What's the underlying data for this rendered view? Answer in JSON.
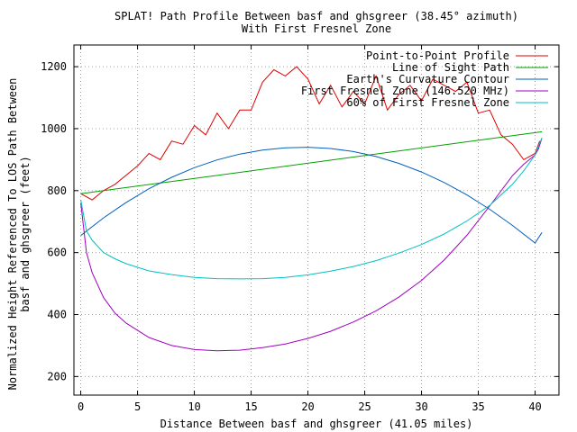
{
  "chart_data": {
    "type": "line",
    "title": "SPLAT! Path Profile Between basf and ghsgreer (38.45° azimuth)",
    "subtitle": "With First Fresnel Zone",
    "xlabel": "Distance Between basf and ghsgreer (41.05 miles)",
    "ylabel_lines": [
      "Normalized Height Referenced To LOS Path Between",
      "basf and ghsgreer (feet)"
    ],
    "xlim": [
      -0.6,
      42.1
    ],
    "ylim": [
      140,
      1270
    ],
    "x_ticks": [
      0,
      5,
      10,
      15,
      20,
      25,
      30,
      35,
      40
    ],
    "y_ticks": [
      200,
      400,
      600,
      800,
      1000,
      1200
    ],
    "grid": true,
    "legend_position": "top-right",
    "series": [
      {
        "name": "Point-to-Point Profile",
        "color": "#e00000",
        "x": [
          0,
          1,
          2,
          3,
          4,
          5,
          6,
          7,
          8,
          9,
          10,
          11,
          12,
          13,
          14,
          15,
          16,
          17,
          18,
          19,
          20,
          21,
          22,
          23,
          24,
          25,
          26,
          27,
          28,
          29,
          30,
          31,
          32,
          33,
          34,
          35,
          36,
          37,
          38,
          39,
          40,
          40.4
        ],
        "y": [
          790,
          770,
          800,
          820,
          850,
          880,
          920,
          900,
          960,
          950,
          1010,
          980,
          1050,
          1000,
          1060,
          1060,
          1150,
          1190,
          1170,
          1200,
          1160,
          1080,
          1140,
          1070,
          1120,
          1080,
          1170,
          1060,
          1110,
          1140,
          1090,
          1160,
          1140,
          1120,
          1150,
          1050,
          1060,
          980,
          950,
          900,
          920,
          960
        ]
      },
      {
        "name": "Line of Sight Path",
        "color": "#00a000",
        "x": [
          0,
          40.6
        ],
        "y": [
          790,
          990
        ]
      },
      {
        "name": "Earth's Curvature Contour",
        "color": "#0060c0",
        "x": [
          0,
          2,
          4,
          6,
          8,
          10,
          12,
          14,
          16,
          18,
          20,
          22,
          24,
          26,
          28,
          30,
          32,
          34,
          36,
          38,
          40,
          40.6
        ],
        "y": [
          655,
          712,
          762,
          806,
          843,
          874,
          899,
          918,
          931,
          938,
          940,
          936,
          926,
          910,
          888,
          860,
          826,
          786,
          740,
          688,
          631,
          665
        ]
      },
      {
        "name": "First Fresnel Zone (146.520 MHz)",
        "color": "#a000c0",
        "x": [
          0,
          0.5,
          1,
          2,
          3,
          4,
          6,
          8,
          10,
          12,
          14,
          16,
          18,
          20,
          22,
          24,
          26,
          28,
          30,
          32,
          34,
          36,
          38,
          39,
          40,
          40.3,
          40.6
        ],
        "y": [
          760,
          600,
          535,
          455,
          405,
          372,
          326,
          300,
          287,
          283,
          285,
          293,
          305,
          323,
          346,
          376,
          412,
          456,
          510,
          576,
          656,
          750,
          848,
          885,
          915,
          935,
          970
        ]
      },
      {
        "name": "60% of First Fresnel Zone",
        "color": "#00c0c0",
        "x": [
          0,
          0.5,
          1,
          2,
          3,
          4,
          6,
          8,
          10,
          12,
          14,
          16,
          18,
          20,
          22,
          24,
          26,
          28,
          30,
          32,
          34,
          36,
          38,
          39,
          40,
          40.3,
          40.6
        ],
        "y": [
          770,
          670,
          640,
          600,
          580,
          564,
          541,
          529,
          520,
          516,
          515,
          516,
          520,
          528,
          540,
          555,
          574,
          598,
          626,
          660,
          702,
          752,
          820,
          864,
          915,
          945,
          970
        ]
      }
    ]
  }
}
